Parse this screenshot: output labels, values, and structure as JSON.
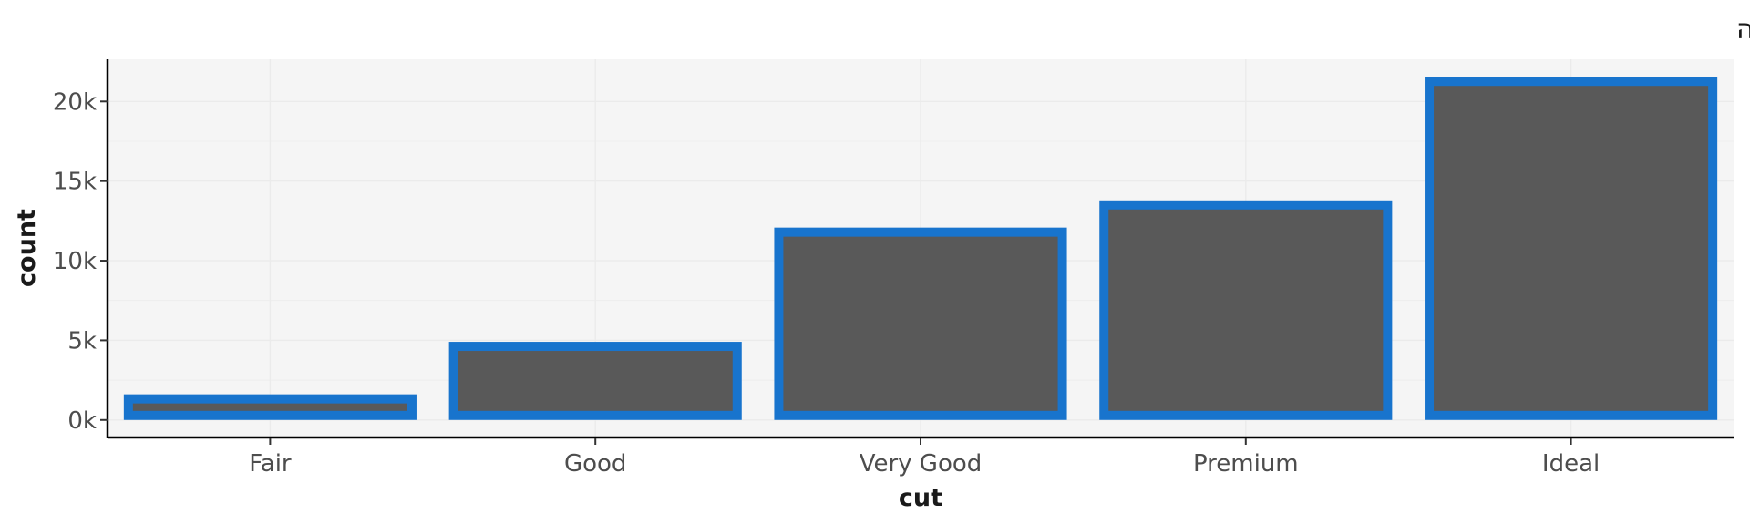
{
  "chart_data": {
    "type": "bar",
    "title": "כותרת הגרף מתוך הפונקציה",
    "xlabel": "cut",
    "ylabel": "count",
    "categories": [
      "Fair",
      "Good",
      "Very Good",
      "Premium",
      "Ideal"
    ],
    "values": [
      1610,
      4906,
      12082,
      13791,
      21551
    ],
    "ylim": [
      -1100,
      22650
    ],
    "yticks": [
      0,
      5000,
      10000,
      15000,
      20000
    ],
    "ytick_labels": [
      "0k",
      "5k",
      "10k",
      "15k",
      "20k"
    ],
    "grid": true,
    "colors": {
      "bar_fill": "#595959",
      "bar_outline": "#1874cd",
      "panel_background": "#f5f5f5",
      "grid": "#ebebeb",
      "axis_line": "#000000"
    }
  }
}
